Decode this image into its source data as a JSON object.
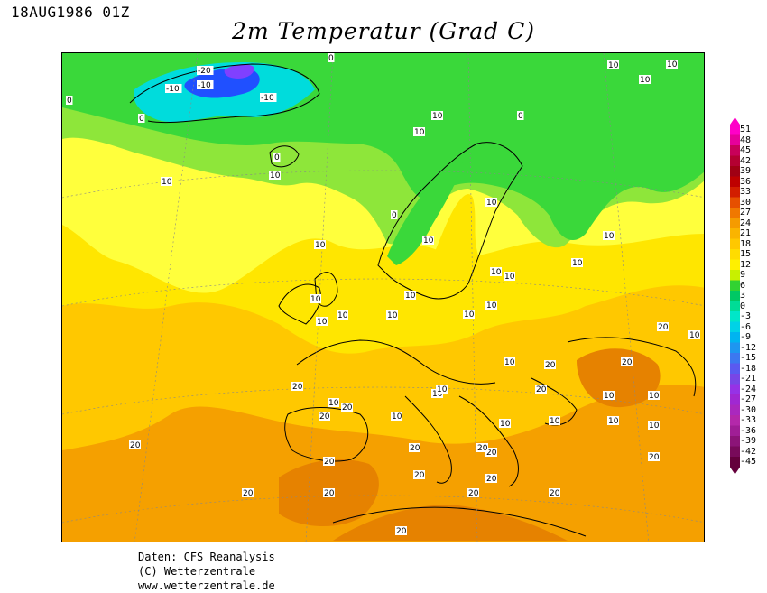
{
  "header": {
    "date_label": "18AUG1986 01Z",
    "title": "2m Temperatur (Grad C)"
  },
  "footer": {
    "line1": "Daten: CFS Reanalysis",
    "line2": "(C) Wetterzentrale",
    "line3": "www.wetterzentrale.de"
  },
  "colorbar": {
    "labels": [
      "51",
      "48",
      "45",
      "42",
      "39",
      "36",
      "33",
      "30",
      "27",
      "24",
      "21",
      "18",
      "15",
      "12",
      "9",
      "6",
      "3",
      "0",
      "-3",
      "-6",
      "-9",
      "-12",
      "-15",
      "-18",
      "-21",
      "-24",
      "-27",
      "-30",
      "-33",
      "-36",
      "-39",
      "-42",
      "-45"
    ],
    "colors": [
      "#ff00c8",
      "#e6009b",
      "#c8005a",
      "#b40032",
      "#a00014",
      "#be0000",
      "#d21e00",
      "#e65000",
      "#f07800",
      "#f59b00",
      "#fab400",
      "#ffc800",
      "#ffdc00",
      "#fff000",
      "#c8f000",
      "#32d232",
      "#00c864",
      "#00dc96",
      "#00e6c8",
      "#00d2e6",
      "#00b4f0",
      "#1e96f0",
      "#3c78f0",
      "#5a5af0",
      "#7846e6",
      "#9632e6",
      "#a028d2",
      "#aa28be",
      "#b428aa",
      "#a01e96",
      "#8c1478",
      "#780a5a",
      "#64003c"
    ]
  },
  "contour_labels": [
    "-20",
    "-10",
    "-10",
    "-10",
    "0",
    "0",
    "0",
    "0",
    "0",
    "0",
    "10",
    "10",
    "10",
    "10",
    "10",
    "10",
    "10",
    "10",
    "10",
    "10",
    "10",
    "10",
    "10",
    "10",
    "10",
    "10",
    "10",
    "10",
    "10",
    "10",
    "10",
    "10",
    "10",
    "10",
    "10",
    "10",
    "10",
    "10",
    "10",
    "10",
    "10",
    "10",
    "10",
    "20",
    "20",
    "20",
    "20",
    "20",
    "20",
    "20",
    "20",
    "20",
    "20",
    "20",
    "20",
    "20",
    "20",
    "20",
    "20",
    "20",
    "20",
    "20",
    "20"
  ],
  "colors": {
    "cold_green": "#3ad83a",
    "light_green": "#8ee63a",
    "cool_yellow": "#ffff3c",
    "yellow": "#ffe600",
    "yellow_orange": "#ffc800",
    "orange": "#f5a000",
    "dark_orange": "#e68200",
    "cyan": "#00dcdc",
    "blue": "#2050ff",
    "purple": "#8040ff"
  }
}
